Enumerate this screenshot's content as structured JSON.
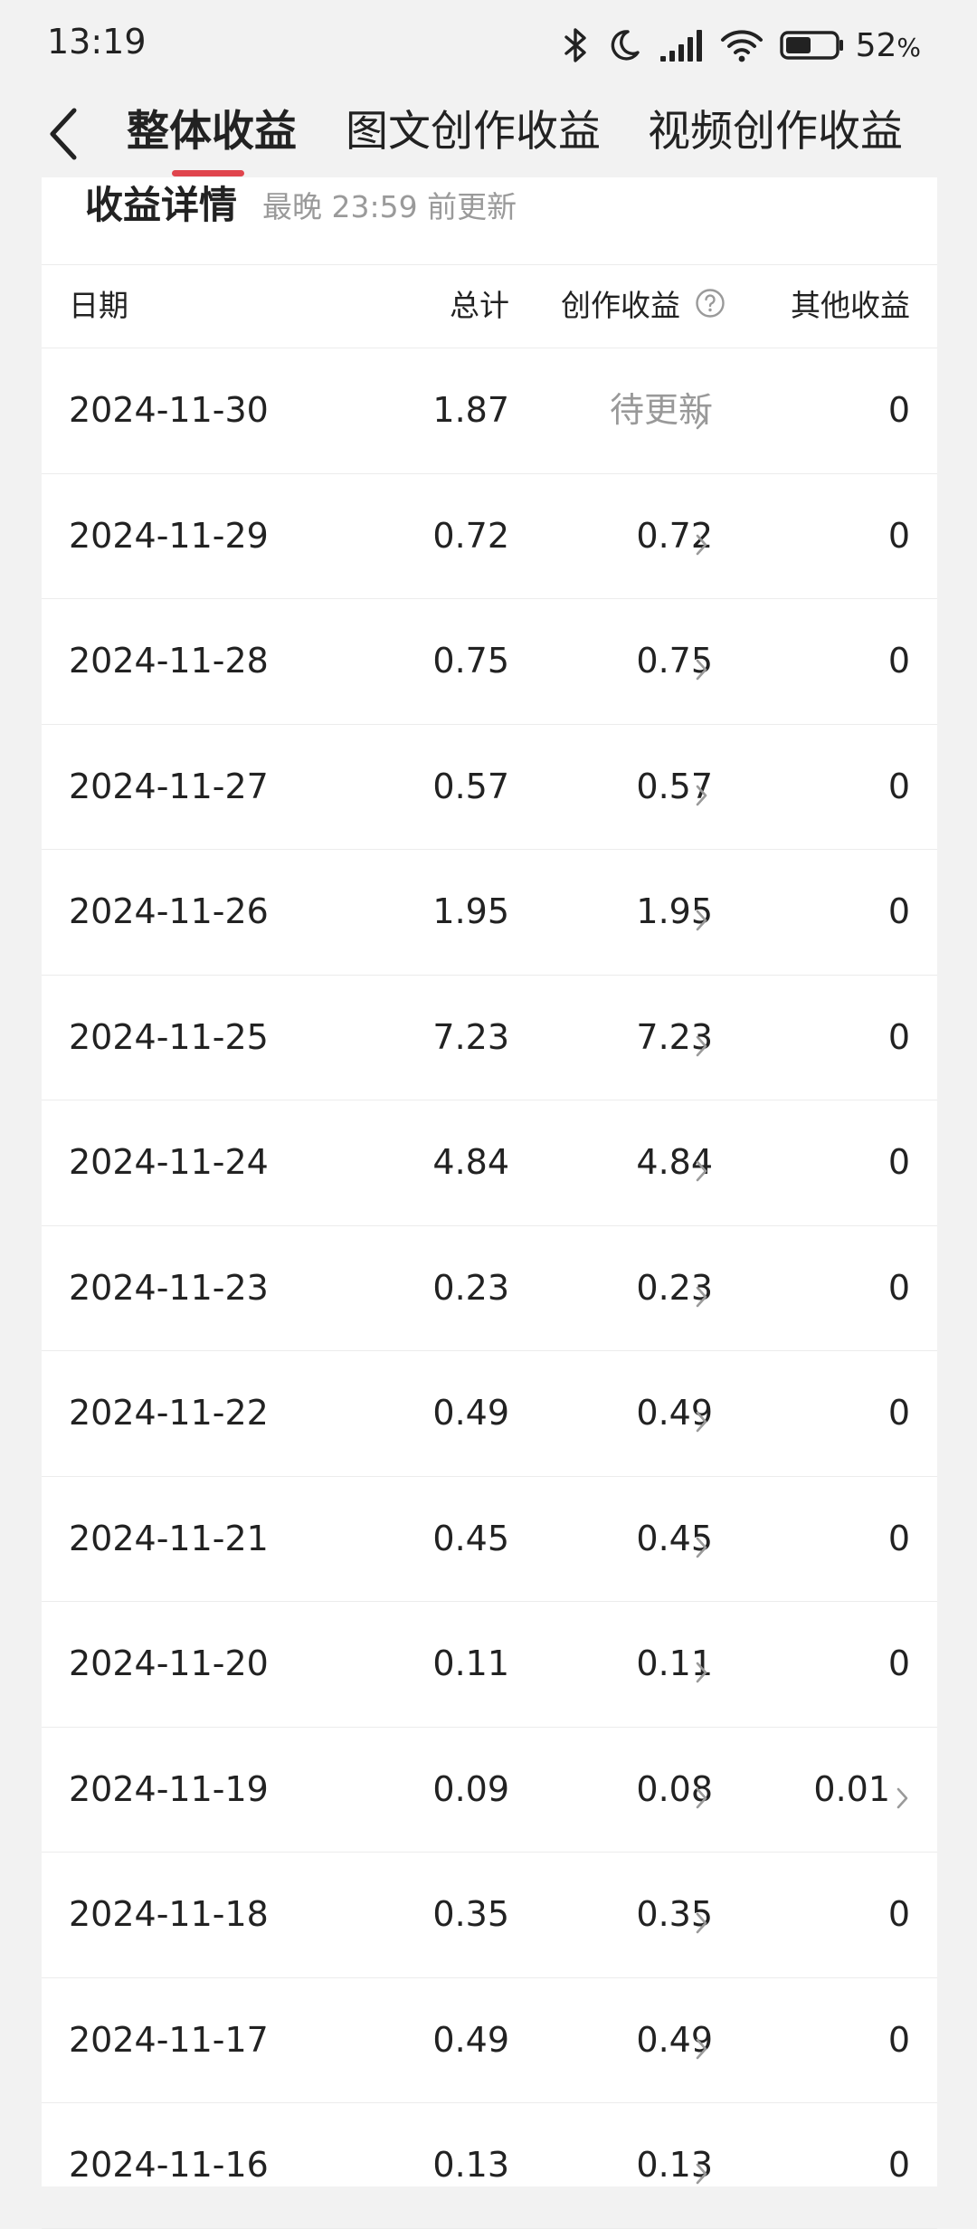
{
  "status_bar": {
    "time": "13:19",
    "battery_percent": "52",
    "battery_unit": "%",
    "battery_level": 0.52,
    "icons": [
      "bluetooth-icon",
      "moon-icon",
      "signal-icon",
      "wifi-icon",
      "battery-icon"
    ]
  },
  "header": {
    "tabs": [
      {
        "label": "整体收益",
        "active": true
      },
      {
        "label": "图文创作收益",
        "active": false
      },
      {
        "label": "视频创作收益",
        "active": false
      }
    ],
    "accent_color": "#e0454d"
  },
  "card": {
    "title": "收益详情",
    "subtitle": "最晚 23:59 前更新"
  },
  "table": {
    "columns": {
      "date": "日期",
      "total": "总计",
      "creation": "创作收益",
      "other": "其他收益"
    },
    "rows": [
      {
        "date": "2024-11-30",
        "total": "1.87",
        "creation": "待更新",
        "other": "0"
      },
      {
        "date": "2024-11-29",
        "total": "0.72",
        "creation": "0.72",
        "other": "0"
      },
      {
        "date": "2024-11-28",
        "total": "0.75",
        "creation": "0.75",
        "other": "0"
      },
      {
        "date": "2024-11-27",
        "total": "0.57",
        "creation": "0.57",
        "other": "0"
      },
      {
        "date": "2024-11-26",
        "total": "1.95",
        "creation": "1.95",
        "other": "0"
      },
      {
        "date": "2024-11-25",
        "total": "7.23",
        "creation": "7.23",
        "other": "0"
      },
      {
        "date": "2024-11-24",
        "total": "4.84",
        "creation": "4.84",
        "other": "0"
      },
      {
        "date": "2024-11-23",
        "total": "0.23",
        "creation": "0.23",
        "other": "0"
      },
      {
        "date": "2024-11-22",
        "total": "0.49",
        "creation": "0.49",
        "other": "0"
      },
      {
        "date": "2024-11-21",
        "total": "0.45",
        "creation": "0.45",
        "other": "0"
      },
      {
        "date": "2024-11-20",
        "total": "0.11",
        "creation": "0.11",
        "other": "0"
      },
      {
        "date": "2024-11-19",
        "total": "0.09",
        "creation": "0.08",
        "other": "0.01"
      },
      {
        "date": "2024-11-18",
        "total": "0.35",
        "creation": "0.35",
        "other": "0"
      },
      {
        "date": "2024-11-17",
        "total": "0.49",
        "creation": "0.49",
        "other": "0"
      },
      {
        "date": "2024-11-16",
        "total": "0.13",
        "creation": "0.13",
        "other": "0"
      }
    ]
  }
}
